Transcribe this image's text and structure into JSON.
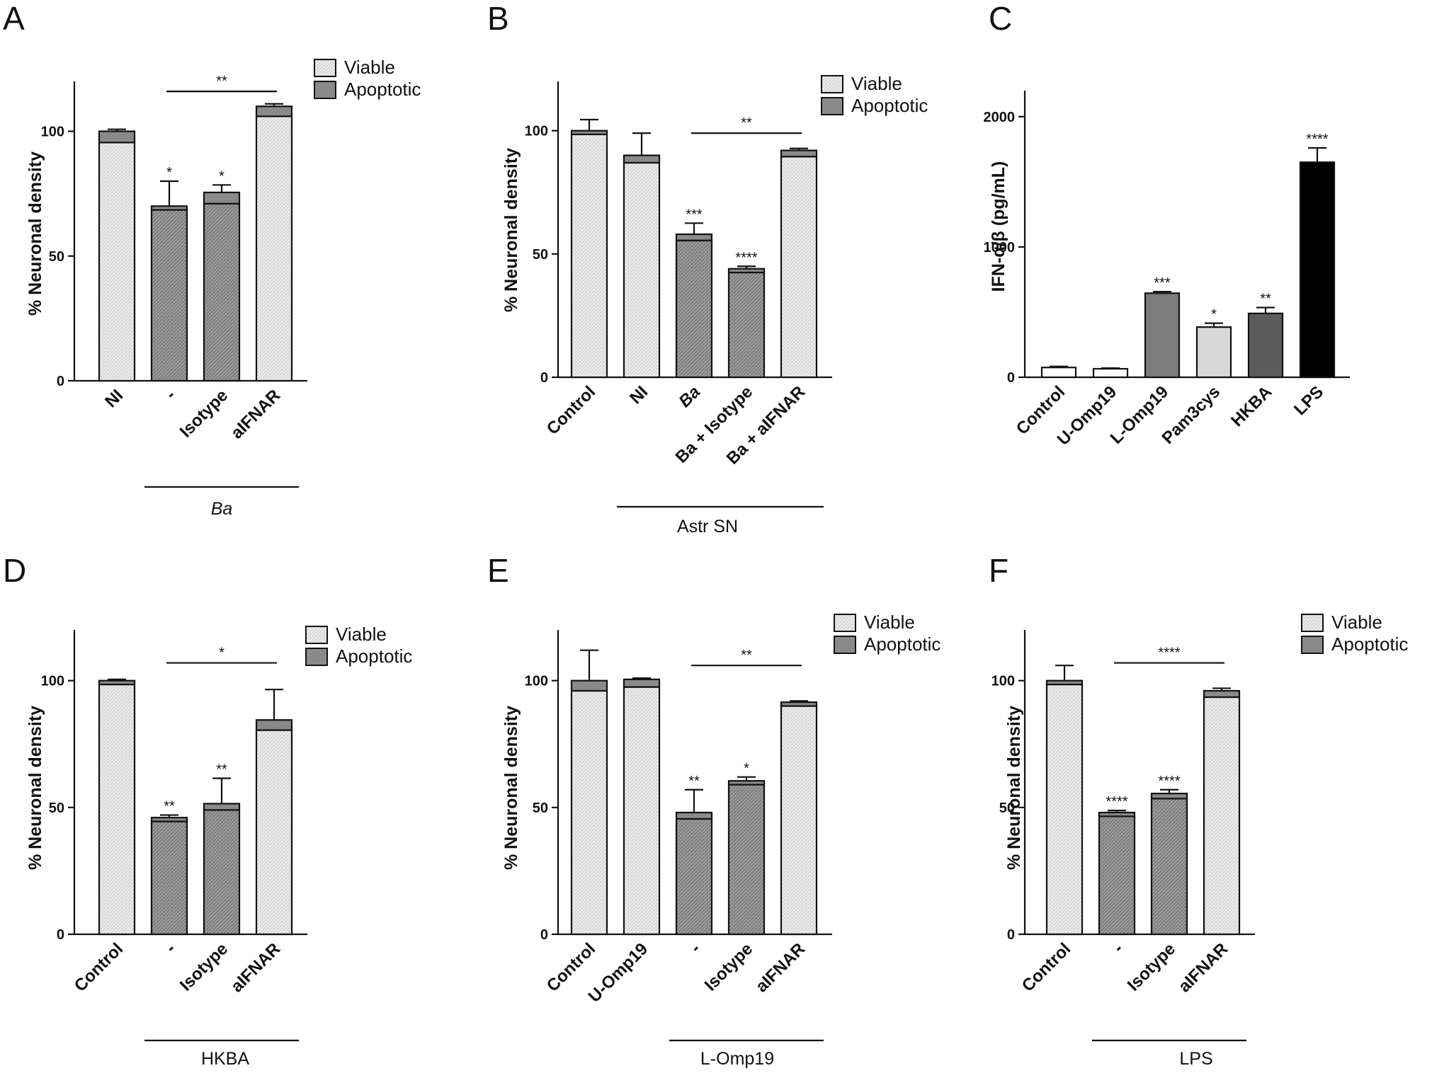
{
  "figure": {
    "panels": [
      "A",
      "B",
      "C",
      "D",
      "E",
      "F"
    ]
  },
  "legend": {
    "viable": "Viable",
    "apoptotic": "Apoptotic"
  },
  "colors": {
    "viable": "#ececec",
    "apoptotic": "#8a8a8a",
    "axis": "#111111",
    "panel_c_bars": [
      "#ffffff",
      "#ffffff",
      "#7c7c7c",
      "#d8d8d8",
      "#5c5c5c",
      "#000000"
    ]
  },
  "chart_data": [
    {
      "panel": "A",
      "type": "bar",
      "stacked": true,
      "ylabel": "% Neuronal density",
      "ylim": [
        0,
        120
      ],
      "yticks": [
        0,
        50,
        100
      ],
      "categories": [
        "NI",
        "-",
        "Isotype",
        "aIFNAR"
      ],
      "category_italic": [
        false,
        false,
        false,
        false
      ],
      "series": [
        {
          "name": "Viable",
          "values": [
            95.5,
            68.5,
            71,
            106
          ]
        },
        {
          "name": "Apoptotic",
          "values": [
            4.5,
            1.5,
            4.5,
            4
          ]
        }
      ],
      "errors": [
        0.8,
        10,
        3,
        1
      ],
      "significance": [
        "",
        "*",
        "*",
        ""
      ],
      "comparison": {
        "from": 1,
        "to": 3,
        "label": "**",
        "y": 116
      },
      "group": {
        "label": "Ba",
        "italic": true,
        "from": 1,
        "to": 3
      },
      "legend_position": "top-right"
    },
    {
      "panel": "B",
      "type": "bar",
      "stacked": true,
      "ylabel": "% Neuronal density",
      "ylim": [
        0,
        120
      ],
      "yticks": [
        0,
        50,
        100
      ],
      "categories": [
        "Control",
        "NI",
        "Ba",
        "Ba + Isotype",
        "Ba + aIFNAR"
      ],
      "category_italic": [
        false,
        false,
        true,
        false,
        false
      ],
      "series": [
        {
          "name": "Viable",
          "values": [
            98.5,
            87,
            55.5,
            42.5,
            89.5
          ]
        },
        {
          "name": "Apoptotic",
          "values": [
            1.5,
            3,
            2.5,
            1.5,
            2.5
          ]
        }
      ],
      "errors": [
        4.5,
        9,
        4.5,
        1,
        0.8
      ],
      "significance": [
        "",
        "",
        "***",
        "****",
        ""
      ],
      "comparison": {
        "from": 2,
        "to": 4,
        "label": "**",
        "y": 99
      },
      "group": {
        "label": "Astr SN",
        "italic": false,
        "from": 1,
        "to": 4
      },
      "legend_position": "top-right"
    },
    {
      "panel": "C",
      "type": "bar",
      "stacked": false,
      "ylabel": "IFN-α/β (pg/mL)",
      "ylim": [
        0,
        2200
      ],
      "yticks": [
        0,
        1000,
        2000
      ],
      "categories": [
        "Control",
        "U-Omp19",
        "L-Omp19",
        "Pam3cys",
        "HKBA",
        "LPS"
      ],
      "category_italic": [
        false,
        false,
        false,
        false,
        false,
        false
      ],
      "values": [
        75,
        65,
        645,
        385,
        490,
        1650
      ],
      "errors": [
        8,
        5,
        12,
        30,
        45,
        110
      ],
      "significance": [
        "",
        "",
        "***",
        "*",
        "**",
        "****"
      ]
    },
    {
      "panel": "D",
      "type": "bar",
      "stacked": true,
      "ylabel": "% Neuronal density",
      "ylim": [
        0,
        120
      ],
      "yticks": [
        0,
        50,
        100
      ],
      "categories": [
        "Control",
        "-",
        "Isotype",
        "aIFNAR"
      ],
      "category_italic": [
        false,
        false,
        false,
        false
      ],
      "series": [
        {
          "name": "Viable",
          "values": [
            98.5,
            44.5,
            49,
            80.5
          ]
        },
        {
          "name": "Apoptotic",
          "values": [
            1.5,
            1.5,
            2.5,
            4
          ]
        }
      ],
      "errors": [
        0.5,
        1,
        10,
        12
      ],
      "significance": [
        "",
        "**",
        "**",
        ""
      ],
      "comparison": {
        "from": 1,
        "to": 3,
        "label": "*",
        "y": 107
      },
      "group": {
        "label": "HKBA",
        "italic": false,
        "from": 1,
        "to": 3
      },
      "legend_position": "top-right"
    },
    {
      "panel": "E",
      "type": "bar",
      "stacked": true,
      "ylabel": "% Neuronal density",
      "ylim": [
        0,
        120
      ],
      "yticks": [
        0,
        50,
        100
      ],
      "categories": [
        "Control",
        "U-Omp19",
        "-",
        "Isotype",
        "aIFNAR"
      ],
      "category_italic": [
        false,
        false,
        false,
        false,
        false
      ],
      "series": [
        {
          "name": "Viable",
          "values": [
            96,
            97.5,
            45.5,
            59,
            90
          ]
        },
        {
          "name": "Apoptotic",
          "values": [
            4,
            3,
            2.5,
            1.5,
            1.5
          ]
        }
      ],
      "errors": [
        12,
        0.5,
        9,
        1.5,
        0.5
      ],
      "significance": [
        "",
        "",
        "**",
        "*",
        ""
      ],
      "comparison": {
        "from": 2,
        "to": 4,
        "label": "**",
        "y": 106
      },
      "group": {
        "label": "L-Omp19",
        "italic": false,
        "from": 2,
        "to": 4
      },
      "legend_position": "top-right"
    },
    {
      "panel": "F",
      "type": "bar",
      "stacked": true,
      "ylabel": "% Neuronal density",
      "ylim": [
        0,
        120
      ],
      "yticks": [
        0,
        50,
        100
      ],
      "categories": [
        "Control",
        "-",
        "Isotype",
        "aIFNAR"
      ],
      "category_italic": [
        false,
        false,
        false,
        false
      ],
      "series": [
        {
          "name": "Viable",
          "values": [
            98.5,
            46.5,
            53.5,
            93.5
          ]
        },
        {
          "name": "Apoptotic",
          "values": [
            1.5,
            1.5,
            2,
            2.5
          ]
        }
      ],
      "errors": [
        6,
        0.8,
        1.5,
        1
      ],
      "significance": [
        "",
        "****",
        "****",
        ""
      ],
      "comparison": {
        "from": 1,
        "to": 3,
        "label": "****",
        "y": 107
      },
      "group": {
        "label": "LPS",
        "italic": false,
        "from": 1,
        "to": 3
      },
      "legend_position": "top-right"
    }
  ]
}
